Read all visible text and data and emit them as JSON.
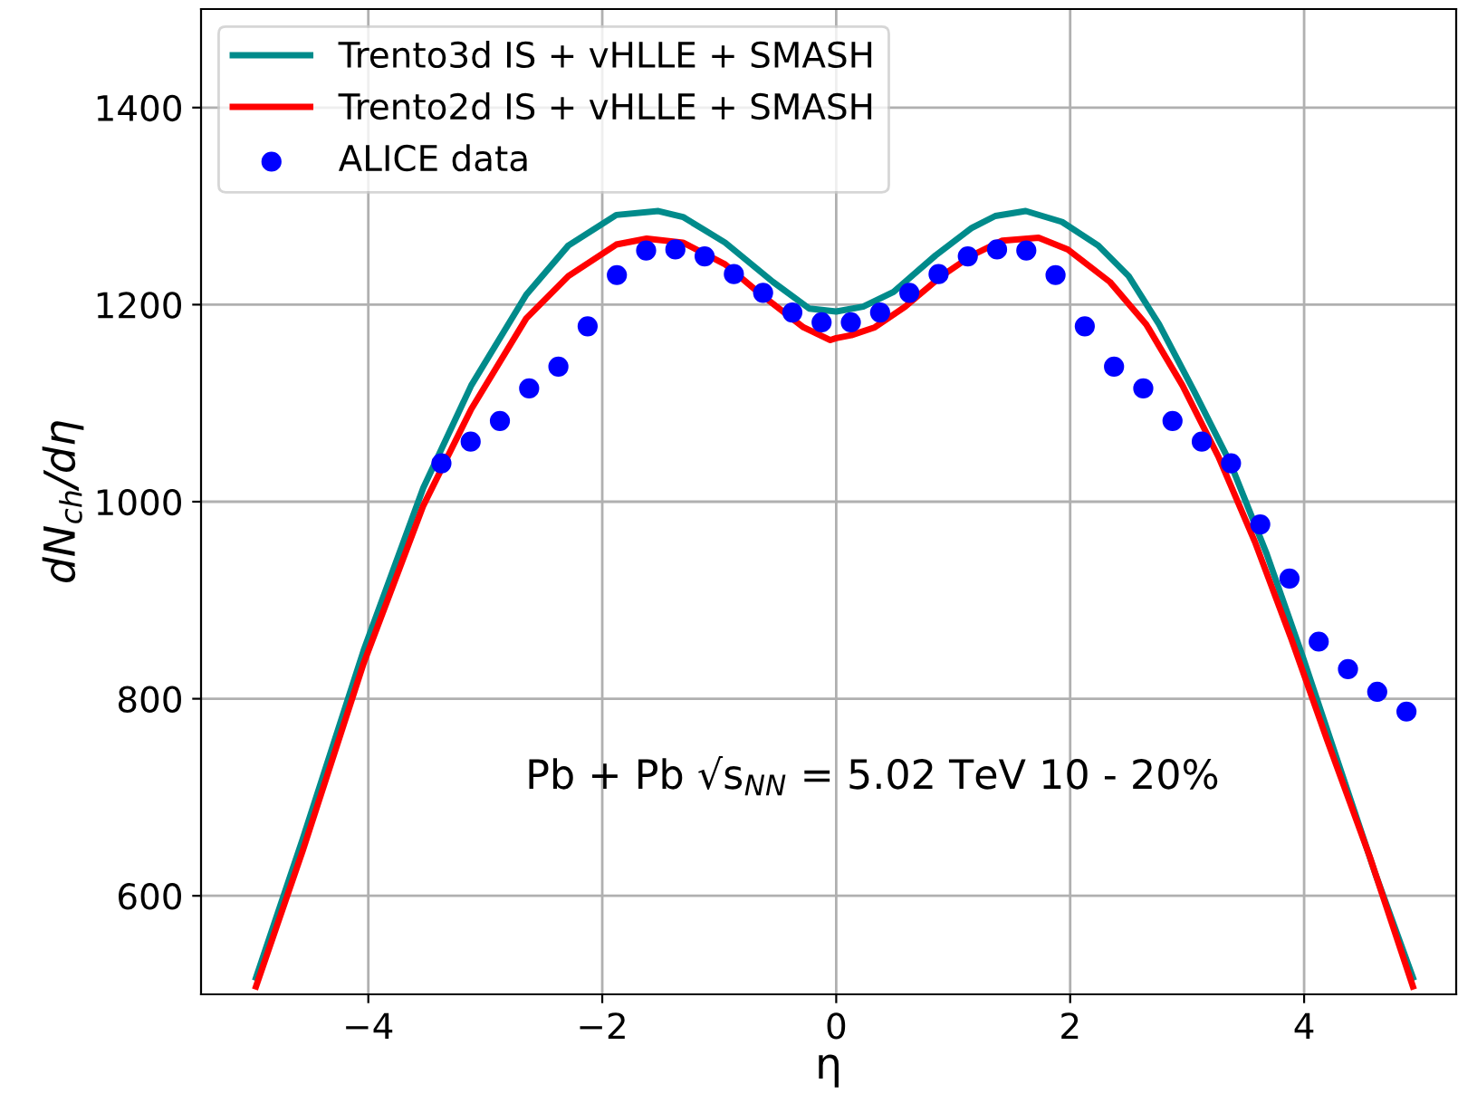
{
  "chart_data": {
    "type": "line",
    "xlabel": "η",
    "ylabel": "dN$_{ch}$/dη",
    "xlim": [
      -5.43,
      5.3
    ],
    "ylim": [
      500,
      1500
    ],
    "xticks": [
      {
        "value": -4,
        "label": "−4"
      },
      {
        "value": -2,
        "label": "−2"
      },
      0,
      2,
      4
    ],
    "yticks": [
      600,
      800,
      1000,
      1200,
      1400
    ],
    "grid": true,
    "legend": "top left",
    "annotations": [
      "Pb + Pb √s$_{NN}$ = 5.02 TeV 10 - 20%"
    ],
    "series": [
      {
        "name": "Trento3d IS + vHLLE + SMASH",
        "color": "#008b8b",
        "x": [
          -4.96,
          -4.56,
          -4.04,
          -3.53,
          -3.12,
          -2.65,
          -2.29,
          -1.88,
          -1.52,
          -1.31,
          -0.95,
          -0.54,
          -0.23,
          0,
          0.23,
          0.49,
          0.85,
          1.16,
          1.36,
          1.62,
          1.93,
          2.24,
          2.5,
          2.76,
          3.06,
          3.37,
          3.68,
          3.99,
          4.3,
          4.61,
          4.93
        ],
        "values": [
          517,
          658,
          849,
          1014,
          1118,
          1210,
          1260,
          1291,
          1295,
          1289,
          1263,
          1223,
          1196,
          1193,
          1198,
          1213,
          1250,
          1278,
          1290,
          1295,
          1284,
          1260,
          1229,
          1180,
          1112,
          1039,
          947,
          842,
          732,
          622,
          517
        ]
      },
      {
        "name": "Trento2d IS + vHLLE + SMASH",
        "color": "#ff0000",
        "x": [
          -4.96,
          -4.56,
          -4.04,
          -3.53,
          -3.12,
          -2.65,
          -2.29,
          -1.88,
          -1.62,
          -1.31,
          -0.95,
          -0.64,
          -0.28,
          -0.05,
          0,
          0.13,
          0.33,
          0.59,
          0.9,
          1.16,
          1.42,
          1.73,
          1.98,
          2.34,
          2.65,
          2.96,
          3.27,
          3.58,
          3.89,
          4.2,
          4.56,
          4.93
        ],
        "values": [
          508,
          646,
          836,
          996,
          1094,
          1186,
          1229,
          1261,
          1267,
          1263,
          1241,
          1210,
          1177,
          1164,
          1166,
          1169,
          1177,
          1198,
          1229,
          1250,
          1265,
          1268,
          1256,
          1223,
          1180,
          1118,
          1045,
          959,
          861,
          757,
          640,
          508
        ]
      },
      {
        "name": "ALICE data",
        "color": "#0000ff",
        "type": "scatter",
        "marker": "circle",
        "x": [
          -3.375,
          -3.125,
          -2.875,
          -2.625,
          -2.375,
          -2.125,
          -1.875,
          -1.625,
          -1.375,
          -1.125,
          -0.875,
          -0.625,
          -0.375,
          -0.125,
          0.125,
          0.375,
          0.625,
          0.875,
          1.125,
          1.375,
          1.625,
          1.875,
          2.125,
          2.375,
          2.625,
          2.875,
          3.125,
          3.375,
          3.625,
          3.875,
          4.125,
          4.375,
          4.625,
          4.875
        ],
        "values": [
          1039,
          1061,
          1082,
          1115,
          1137,
          1178,
          1230,
          1255,
          1256,
          1249,
          1231,
          1212,
          1192,
          1182,
          1182,
          1192,
          1212,
          1231,
          1249,
          1256,
          1255,
          1230,
          1178,
          1137,
          1115,
          1082,
          1061,
          1039,
          977,
          922,
          858,
          830,
          807,
          787
        ]
      }
    ]
  }
}
